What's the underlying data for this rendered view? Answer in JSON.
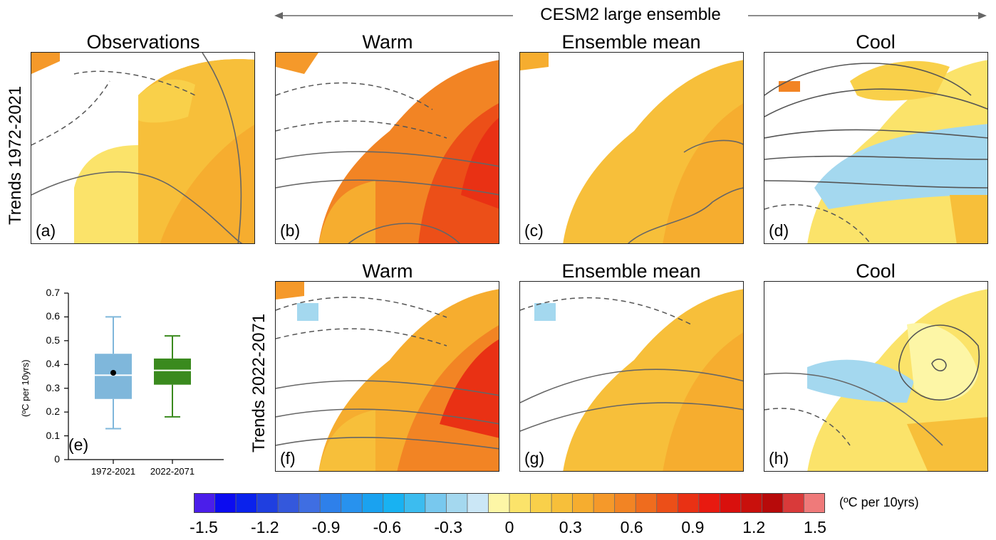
{
  "header": {
    "ensemble_label": "CESM2 large ensemble",
    "row1_label": "Trends 1972-2021",
    "row2_label": "Trends 2022-2071"
  },
  "panels": [
    {
      "id": "a",
      "title": "Observations",
      "label": "(a)"
    },
    {
      "id": "b",
      "title": "Warm",
      "label": "(b)"
    },
    {
      "id": "c",
      "title": "Ensemble mean",
      "label": "(c)"
    },
    {
      "id": "d",
      "title": "Cool",
      "label": "(d)"
    },
    {
      "id": "f",
      "title": "Warm",
      "label": "(f)"
    },
    {
      "id": "g",
      "title": "Ensemble mean",
      "label": "(g)"
    },
    {
      "id": "h",
      "title": "Cool",
      "label": "(h)"
    }
  ],
  "boxplot": {
    "label": "(e)",
    "ylabel": "(ºC per 10yrs)",
    "yticks": [
      "0.7",
      "0.6",
      "0.5",
      "0.4",
      "0.3",
      "0.2",
      "0.1",
      "0"
    ],
    "categories": [
      "1972-2021",
      "2022-2071"
    ],
    "boxes": [
      {
        "period": "1972-2021",
        "min": 0.13,
        "q1": 0.255,
        "median": 0.355,
        "q3": 0.445,
        "max": 0.6,
        "observed": 0.365,
        "color": "#7fb7db"
      },
      {
        "period": "2022-2071",
        "min": 0.18,
        "q1": 0.315,
        "median": 0.375,
        "q3": 0.425,
        "max": 0.52,
        "color": "#3a8a1e"
      }
    ]
  },
  "colorbar": {
    "unit": "(ºC per 10yrs)",
    "ticks": [
      "-1.5",
      "-1.2",
      "-0.9",
      "-0.6",
      "-0.3",
      "0",
      "0.3",
      "0.6",
      "0.9",
      "1.2",
      "1.5"
    ],
    "colors": [
      "#4b1eea",
      "#0c0cf0",
      "#0a22ec",
      "#1f3fe0",
      "#3458dc",
      "#3f6ee2",
      "#2e80ea",
      "#2892ee",
      "#1aa2f0",
      "#18b2f2",
      "#3cbcef",
      "#78c8ee",
      "#a4d8ef",
      "#cbe7f6",
      "#fdf6a6",
      "#fbe36a",
      "#f9d04a",
      "#f7bf3a",
      "#f6ad2f",
      "#f5992a",
      "#f28424",
      "#ef6c1e",
      "#ec4f18",
      "#e93114",
      "#e81a10",
      "#d9100d",
      "#c9100c",
      "#b70a0a",
      "#d93a3a",
      "#ef7a7a"
    ]
  }
}
